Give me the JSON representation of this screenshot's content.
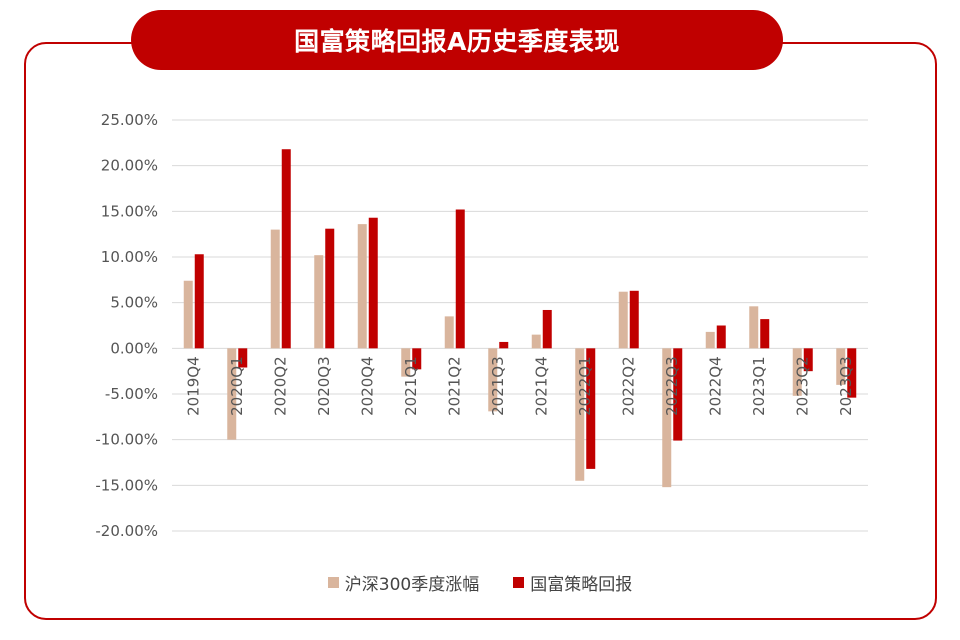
{
  "title": "国富策略回报A历史季度表现",
  "colors": {
    "frame": "#c00000",
    "series1": "#d9b59d",
    "series2": "#c00000",
    "grid": "#d9d9d9",
    "text": "#555555"
  },
  "chart_data": {
    "type": "bar",
    "title": "国富策略回报A历史季度表现",
    "categories": [
      "2019Q4",
      "2020Q1",
      "2020Q2",
      "2020Q3",
      "2020Q4",
      "2021Q1",
      "2021Q2",
      "2021Q3",
      "2021Q4",
      "2022Q1",
      "2022Q2",
      "2022Q3",
      "2022Q4",
      "2023Q1",
      "2023Q2",
      "2023Q3"
    ],
    "series": [
      {
        "name": "沪深300季度涨幅",
        "values": [
          7.4,
          -10.0,
          13.0,
          10.2,
          13.6,
          -3.1,
          3.5,
          -6.9,
          1.5,
          -14.5,
          6.2,
          -15.2,
          1.8,
          4.6,
          -5.2,
          -4.0
        ]
      },
      {
        "name": "国富策略回报",
        "values": [
          10.3,
          -2.1,
          21.8,
          13.1,
          14.3,
          -2.3,
          15.2,
          0.7,
          4.2,
          -13.2,
          6.3,
          -10.1,
          2.5,
          3.2,
          -2.5,
          -5.4
        ]
      }
    ],
    "yticks": [
      "25.00%",
      "20.00%",
      "15.00%",
      "10.00%",
      "5.00%",
      "0.00%",
      "-5.00%",
      "-10.00%",
      "-15.00%",
      "-20.00%"
    ],
    "ylim": [
      -20,
      25
    ],
    "grid": true,
    "legend": "bottom"
  }
}
